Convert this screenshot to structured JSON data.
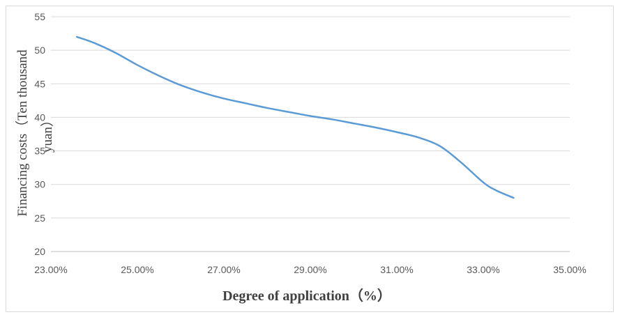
{
  "chart_data": {
    "type": "line",
    "title": "",
    "xlabel": "Degree of application（%）",
    "ylabel_lines": [
      "Financing costs（Ten thousand",
      "yuan）"
    ],
    "x": [
      23.6,
      24.0,
      24.5,
      25.0,
      25.5,
      26.0,
      26.5,
      27.0,
      27.5,
      28.0,
      28.5,
      29.0,
      29.5,
      30.0,
      30.5,
      31.0,
      31.5,
      32.0,
      32.5,
      33.0,
      33.3,
      33.7
    ],
    "y": [
      52.0,
      51.1,
      49.6,
      47.8,
      46.2,
      44.8,
      43.7,
      42.8,
      42.1,
      41.4,
      40.8,
      40.2,
      39.7,
      39.1,
      38.5,
      37.8,
      37.0,
      35.7,
      33.2,
      30.3,
      29.1,
      28.0
    ],
    "xlim": [
      23,
      35
    ],
    "ylim": [
      20,
      55
    ],
    "xticks": [
      23,
      25,
      27,
      29,
      31,
      33,
      35
    ],
    "xtick_labels": [
      "23.00%",
      "25.00%",
      "27.00%",
      "29.00%",
      "31.00%",
      "33.00%",
      "35.00%"
    ],
    "yticks": [
      20,
      25,
      30,
      35,
      40,
      45,
      50,
      55
    ],
    "ytick_labels": [
      "20",
      "25",
      "30",
      "35",
      "40",
      "45",
      "50",
      "55"
    ],
    "grid": "horizontal",
    "legend": "none",
    "series_color": "#5b9bd5",
    "grid_color": "#d9d9d9"
  }
}
